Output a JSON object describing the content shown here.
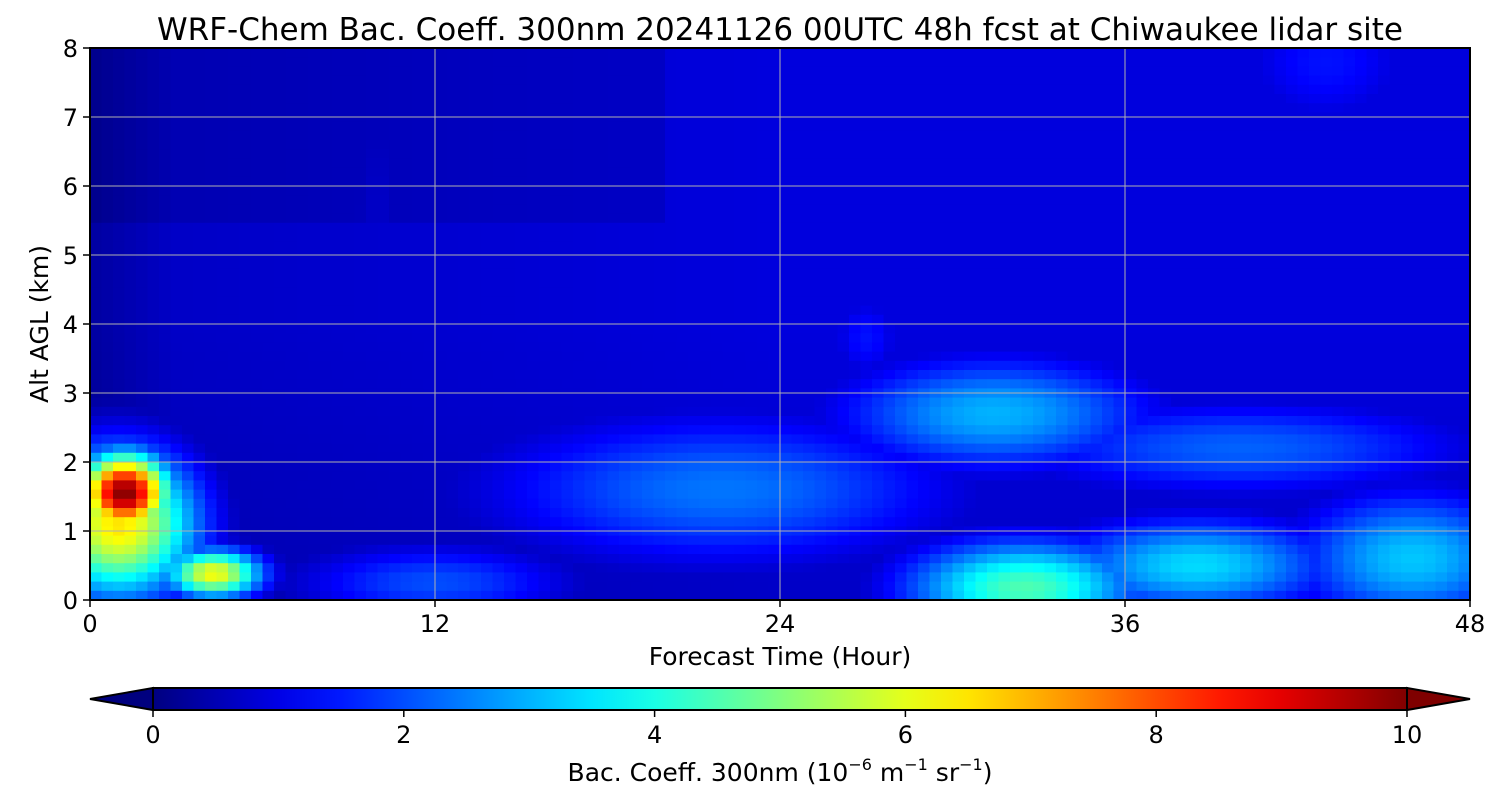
{
  "chart_data": {
    "type": "heatmap",
    "title": "WRF-Chem Bac. Coeff. 300nm  20241126 00UTC 48h fcst at Chiwaukee lidar site",
    "xlabel": "Forecast Time (Hour)",
    "ylabel": "Alt AGL (km)",
    "xlim": [
      0,
      48
    ],
    "ylim": [
      0,
      8
    ],
    "x_ticks": [
      "0",
      "12",
      "24",
      "36",
      "48"
    ],
    "y_ticks": [
      "0",
      "1",
      "2",
      "3",
      "4",
      "5",
      "6",
      "7",
      "8"
    ],
    "grid": true,
    "colorbar": {
      "label_main": "Bac. Coeff. 300nm  (10",
      "label_exp1": "−6",
      "label_mid": " m",
      "label_exp2": "−1",
      "label_mid2": " sr",
      "label_exp3": "−1",
      "label_end": ")",
      "ticks": [
        "0",
        "2",
        "4",
        "6",
        "8",
        "10"
      ],
      "range": [
        0,
        10
      ],
      "extend": "both",
      "colormap": "jet"
    },
    "field_blobs": [
      {
        "x": 1.2,
        "y": 1.55,
        "value": 10.0,
        "sx": 1.1,
        "sy": 0.4
      },
      {
        "x": 1.0,
        "y": 1.1,
        "value": 6.5,
        "sx": 1.9,
        "sy": 0.75
      },
      {
        "x": 4.3,
        "y": 0.38,
        "value": 6.2,
        "sx": 1.2,
        "sy": 0.25
      },
      {
        "x": 12.0,
        "y": 0.25,
        "value": 2.0,
        "sx": 3.5,
        "sy": 0.4
      },
      {
        "x": 22.0,
        "y": 1.6,
        "value": 2.4,
        "sx": 6.0,
        "sy": 0.8
      },
      {
        "x": 31.5,
        "y": 2.7,
        "value": 3.0,
        "sx": 4.0,
        "sy": 0.6
      },
      {
        "x": 40.0,
        "y": 2.2,
        "value": 2.2,
        "sx": 6.0,
        "sy": 0.5
      },
      {
        "x": 27.0,
        "y": 3.8,
        "value": 1.4,
        "sx": 1.0,
        "sy": 0.5
      },
      {
        "x": 32.5,
        "y": 0.18,
        "value": 4.5,
        "sx": 3.0,
        "sy": 0.5
      },
      {
        "x": 38.5,
        "y": 0.5,
        "value": 3.4,
        "sx": 3.5,
        "sy": 0.5
      },
      {
        "x": 46.0,
        "y": 0.6,
        "value": 3.2,
        "sx": 3.0,
        "sy": 0.7
      },
      {
        "x": 43.0,
        "y": 7.8,
        "value": 1.4,
        "sx": 2.5,
        "sy": 0.8
      },
      {
        "x": 10.0,
        "y": 5.5,
        "value": 0.7,
        "sx": 1.0,
        "sy": 2.0
      },
      {
        "x": 29.0,
        "y": 5.5,
        "value": 0.6,
        "sx": 1.0,
        "sy": 0.8
      }
    ]
  }
}
